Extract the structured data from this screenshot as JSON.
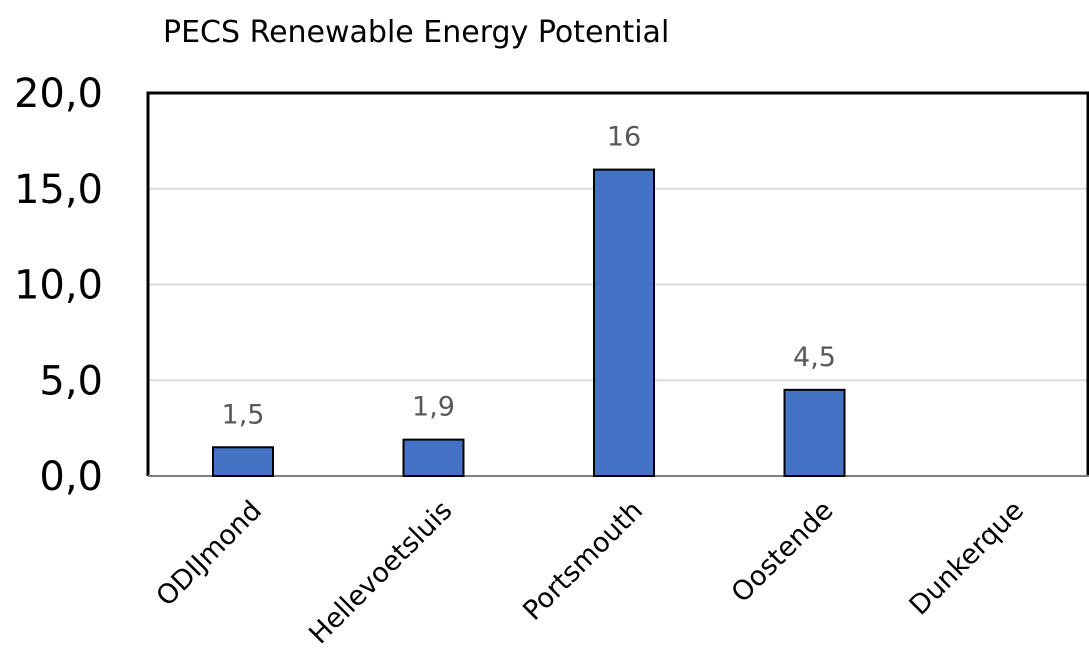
{
  "chart_data": {
    "type": "bar",
    "title": "PECS Renewable Energy Potential",
    "xlabel": "",
    "ylabel": "",
    "categories": [
      "ODIJmond",
      "Hellevoetsluis",
      "Portsmouth",
      "Oostende",
      "Dunkerque"
    ],
    "values": [
      1.5,
      1.9,
      16,
      4.5,
      null
    ],
    "data_labels": [
      "1,5",
      "1,9",
      "16",
      "4,5",
      ""
    ],
    "ylim": [
      0,
      20
    ],
    "yticks": [
      0,
      5,
      10,
      15,
      20
    ],
    "ytick_labels": [
      "0,0",
      "5,0",
      "10,0",
      "15,0",
      "20,0"
    ],
    "grid": true,
    "legend": "none",
    "colors": {
      "bar": "#4472c4",
      "bar_outline": "#000000",
      "gridline": "#d9d9d9",
      "axis": "#000000",
      "data_label": "#595959"
    }
  }
}
